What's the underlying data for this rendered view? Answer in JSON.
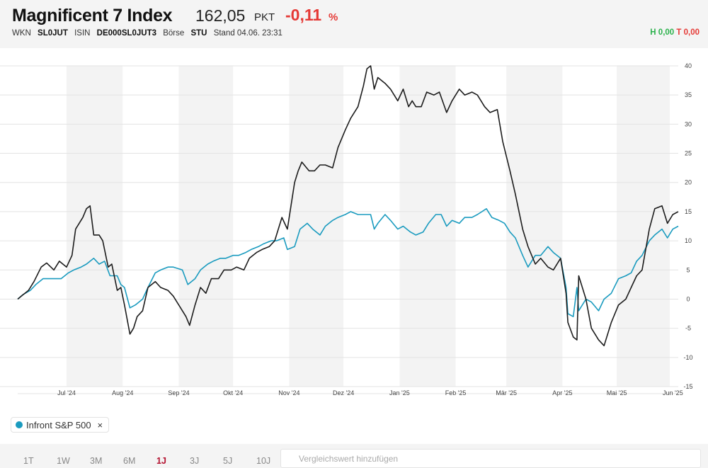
{
  "header": {
    "title": "Magnificent 7 Index",
    "price": "162,05",
    "unit": "PKT",
    "change": "-0,11",
    "change_unit": "%",
    "meta": {
      "wkn_label": "WKN",
      "wkn": "SL0JUT",
      "isin_label": "ISIN",
      "isin": "DE000SL0JUT3",
      "exchange_label": "Börse",
      "exchange": "STU",
      "stand": "Stand 04.06. 23:31"
    },
    "high": "H 0,00",
    "low": "T 0,00"
  },
  "colors": {
    "main": "#1c1c1c",
    "compare": "#1a9bbf",
    "negative": "#e53935",
    "positive": "#2bb24c"
  },
  "chart_data": {
    "type": "line",
    "x_tick_labels": [
      "Jul '24",
      "Aug '24",
      "Sep '24",
      "Okt '24",
      "Nov '24",
      "Dez '24",
      "Jan '25",
      "Feb '25",
      "Mär '25",
      "Apr '25",
      "Mai '25",
      "Jun '25"
    ],
    "y_tick_labels": [
      "40",
      "35",
      "30",
      "25",
      "20",
      "15",
      "10",
      "5",
      "0",
      "-5",
      "-10",
      "-15"
    ],
    "ylim": [
      -15,
      40
    ],
    "grid": true,
    "series": [
      {
        "name": "",
        "values": [
          [
            "2024-06-04",
            0
          ],
          [
            "2024-06-06",
            0.5
          ],
          [
            "2024-06-10",
            1.5
          ],
          [
            "2024-06-13",
            3
          ],
          [
            "2024-06-17",
            5.5
          ],
          [
            "2024-06-20",
            6.2
          ],
          [
            "2024-06-24",
            5
          ],
          [
            "2024-06-27",
            6.5
          ],
          [
            "2024-07-01",
            5.5
          ],
          [
            "2024-07-04",
            7.5
          ],
          [
            "2024-07-06",
            12
          ],
          [
            "2024-07-10",
            14
          ],
          [
            "2024-07-12",
            15.5
          ],
          [
            "2024-07-14",
            16
          ],
          [
            "2024-07-16",
            11
          ],
          [
            "2024-07-19",
            11
          ],
          [
            "2024-07-21",
            10
          ],
          [
            "2024-07-24",
            5.5
          ],
          [
            "2024-07-26",
            6
          ],
          [
            "2024-07-29",
            1.5
          ],
          [
            "2024-07-31",
            2
          ],
          [
            "2024-08-02",
            -1
          ],
          [
            "2024-08-05",
            -6
          ],
          [
            "2024-08-07",
            -5
          ],
          [
            "2024-08-09",
            -3
          ],
          [
            "2024-08-12",
            -2
          ],
          [
            "2024-08-15",
            2
          ],
          [
            "2024-08-19",
            3
          ],
          [
            "2024-08-22",
            2
          ],
          [
            "2024-08-26",
            1.5
          ],
          [
            "2024-08-29",
            0.5
          ],
          [
            "2024-09-03",
            -2
          ],
          [
            "2024-09-05",
            -3
          ],
          [
            "2024-09-07",
            -4.5
          ],
          [
            "2024-09-10",
            -1
          ],
          [
            "2024-09-13",
            2
          ],
          [
            "2024-09-16",
            1
          ],
          [
            "2024-09-19",
            3.5
          ],
          [
            "2024-09-23",
            3.5
          ],
          [
            "2024-09-26",
            5
          ],
          [
            "2024-09-30",
            5
          ],
          [
            "2024-10-03",
            5.5
          ],
          [
            "2024-10-07",
            5
          ],
          [
            "2024-10-10",
            7
          ],
          [
            "2024-10-14",
            8
          ],
          [
            "2024-10-17",
            8.5
          ],
          [
            "2024-10-21",
            9
          ],
          [
            "2024-10-24",
            10
          ],
          [
            "2024-10-28",
            14
          ],
          [
            "2024-10-31",
            12
          ],
          [
            "2024-11-04",
            20
          ],
          [
            "2024-11-06",
            22
          ],
          [
            "2024-11-08",
            23.5
          ],
          [
            "2024-11-12",
            22
          ],
          [
            "2024-11-15",
            22
          ],
          [
            "2024-11-18",
            23
          ],
          [
            "2024-11-21",
            23
          ],
          [
            "2024-11-25",
            22.5
          ],
          [
            "2024-11-28",
            26
          ],
          [
            "2024-12-02",
            29
          ],
          [
            "2024-12-05",
            31
          ],
          [
            "2024-12-09",
            33
          ],
          [
            "2024-12-12",
            36.5
          ],
          [
            "2024-12-14",
            39.5
          ],
          [
            "2024-12-16",
            40
          ],
          [
            "2024-12-18",
            36
          ],
          [
            "2024-12-20",
            38
          ],
          [
            "2024-12-24",
            37
          ],
          [
            "2024-12-27",
            36
          ],
          [
            "2024-12-31",
            34
          ],
          [
            "2025-01-03",
            36
          ],
          [
            "2025-01-06",
            33
          ],
          [
            "2025-01-08",
            34
          ],
          [
            "2025-01-10",
            33
          ],
          [
            "2025-01-13",
            33
          ],
          [
            "2025-01-16",
            35.5
          ],
          [
            "2025-01-20",
            35
          ],
          [
            "2025-01-23",
            35.5
          ],
          [
            "2025-01-27",
            32
          ],
          [
            "2025-01-30",
            34
          ],
          [
            "2025-02-03",
            36
          ],
          [
            "2025-02-06",
            35
          ],
          [
            "2025-02-10",
            35.5
          ],
          [
            "2025-02-13",
            35
          ],
          [
            "2025-02-17",
            33
          ],
          [
            "2025-02-20",
            32
          ],
          [
            "2025-02-24",
            32.5
          ],
          [
            "2025-02-27",
            27
          ],
          [
            "2025-03-03",
            22
          ],
          [
            "2025-03-06",
            18
          ],
          [
            "2025-03-10",
            12
          ],
          [
            "2025-03-13",
            9
          ],
          [
            "2025-03-17",
            6
          ],
          [
            "2025-03-20",
            7
          ],
          [
            "2025-03-24",
            5.5
          ],
          [
            "2025-03-27",
            5
          ],
          [
            "2025-03-31",
            7
          ],
          [
            "2025-04-03",
            1
          ],
          [
            "2025-04-04",
            -4
          ],
          [
            "2025-04-07",
            -6.5
          ],
          [
            "2025-04-09",
            -7
          ],
          [
            "2025-04-10",
            4
          ],
          [
            "2025-04-14",
            0
          ],
          [
            "2025-04-17",
            -5
          ],
          [
            "2025-04-21",
            -7
          ],
          [
            "2025-04-24",
            -8
          ],
          [
            "2025-04-28",
            -4
          ],
          [
            "2025-05-02",
            -1
          ],
          [
            "2025-05-06",
            0
          ],
          [
            "2025-05-09",
            2
          ],
          [
            "2025-05-12",
            4
          ],
          [
            "2025-05-15",
            5
          ],
          [
            "2025-05-19",
            12
          ],
          [
            "2025-05-22",
            15.5
          ],
          [
            "2025-05-26",
            16
          ],
          [
            "2025-05-29",
            13
          ],
          [
            "2025-06-01",
            14.5
          ],
          [
            "2025-06-04",
            15
          ]
        ]
      },
      {
        "name": "Infront S&P 500",
        "values": [
          [
            "2024-06-04",
            0
          ],
          [
            "2024-06-07",
            0.8
          ],
          [
            "2024-06-11",
            1.5
          ],
          [
            "2024-06-14",
            2.5
          ],
          [
            "2024-06-18",
            3.5
          ],
          [
            "2024-06-21",
            3.5
          ],
          [
            "2024-06-25",
            3.5
          ],
          [
            "2024-06-28",
            3.5
          ],
          [
            "2024-07-02",
            4.5
          ],
          [
            "2024-07-05",
            5
          ],
          [
            "2024-07-09",
            5.5
          ],
          [
            "2024-07-12",
            6
          ],
          [
            "2024-07-16",
            7
          ],
          [
            "2024-07-19",
            6
          ],
          [
            "2024-07-22",
            6.5
          ],
          [
            "2024-07-25",
            4
          ],
          [
            "2024-07-29",
            4
          ],
          [
            "2024-07-31",
            2.5
          ],
          [
            "2024-08-02",
            2
          ],
          [
            "2024-08-05",
            -1.5
          ],
          [
            "2024-08-08",
            -1
          ],
          [
            "2024-08-12",
            0
          ],
          [
            "2024-08-15",
            2
          ],
          [
            "2024-08-19",
            4.5
          ],
          [
            "2024-08-22",
            5
          ],
          [
            "2024-08-26",
            5.5
          ],
          [
            "2024-08-29",
            5.5
          ],
          [
            "2024-09-03",
            5
          ],
          [
            "2024-09-06",
            2.5
          ],
          [
            "2024-09-10",
            3.5
          ],
          [
            "2024-09-13",
            5
          ],
          [
            "2024-09-17",
            6
          ],
          [
            "2024-09-20",
            6.5
          ],
          [
            "2024-09-24",
            7
          ],
          [
            "2024-09-27",
            7
          ],
          [
            "2024-10-01",
            7.5
          ],
          [
            "2024-10-04",
            7.5
          ],
          [
            "2024-10-08",
            8
          ],
          [
            "2024-10-11",
            8.5
          ],
          [
            "2024-10-15",
            9
          ],
          [
            "2024-10-18",
            9.5
          ],
          [
            "2024-10-22",
            10
          ],
          [
            "2024-10-25",
            10
          ],
          [
            "2024-10-29",
            10.5
          ],
          [
            "2024-10-31",
            8.5
          ],
          [
            "2024-11-04",
            9
          ],
          [
            "2024-11-07",
            12
          ],
          [
            "2024-11-11",
            13
          ],
          [
            "2024-11-14",
            12
          ],
          [
            "2024-11-18",
            11
          ],
          [
            "2024-11-21",
            12.5
          ],
          [
            "2024-11-25",
            13.5
          ],
          [
            "2024-11-28",
            14
          ],
          [
            "2024-12-02",
            14.5
          ],
          [
            "2024-12-05",
            15
          ],
          [
            "2024-12-09",
            14.5
          ],
          [
            "2024-12-12",
            14.5
          ],
          [
            "2024-12-16",
            14.5
          ],
          [
            "2024-12-18",
            12
          ],
          [
            "2024-12-20",
            13
          ],
          [
            "2024-12-24",
            14.5
          ],
          [
            "2024-12-27",
            13.5
          ],
          [
            "2024-12-31",
            12
          ],
          [
            "2025-01-03",
            12.5
          ],
          [
            "2025-01-07",
            11.5
          ],
          [
            "2025-01-10",
            11
          ],
          [
            "2025-01-14",
            11.5
          ],
          [
            "2025-01-17",
            13
          ],
          [
            "2025-01-21",
            14.5
          ],
          [
            "2025-01-24",
            14.5
          ],
          [
            "2025-01-27",
            12.5
          ],
          [
            "2025-01-30",
            13.5
          ],
          [
            "2025-02-03",
            13
          ],
          [
            "2025-02-06",
            14
          ],
          [
            "2025-02-10",
            14
          ],
          [
            "2025-02-13",
            14.5
          ],
          [
            "2025-02-18",
            15.5
          ],
          [
            "2025-02-21",
            14
          ],
          [
            "2025-02-25",
            13.5
          ],
          [
            "2025-02-28",
            13
          ],
          [
            "2025-03-03",
            11.5
          ],
          [
            "2025-03-06",
            10.5
          ],
          [
            "2025-03-10",
            7.5
          ],
          [
            "2025-03-13",
            5.5
          ],
          [
            "2025-03-17",
            7.5
          ],
          [
            "2025-03-20",
            7.5
          ],
          [
            "2025-03-24",
            9
          ],
          [
            "2025-03-27",
            8
          ],
          [
            "2025-03-31",
            7
          ],
          [
            "2025-04-03",
            2
          ],
          [
            "2025-04-04",
            -2.5
          ],
          [
            "2025-04-07",
            -3
          ],
          [
            "2025-04-09",
            2
          ],
          [
            "2025-04-10",
            -2
          ],
          [
            "2025-04-14",
            0
          ],
          [
            "2025-04-17",
            -0.5
          ],
          [
            "2025-04-21",
            -2
          ],
          [
            "2025-04-24",
            0
          ],
          [
            "2025-04-28",
            1
          ],
          [
            "2025-05-02",
            3.5
          ],
          [
            "2025-05-06",
            4
          ],
          [
            "2025-05-09",
            4.5
          ],
          [
            "2025-05-12",
            6.5
          ],
          [
            "2025-05-15",
            7.5
          ],
          [
            "2025-05-19",
            10
          ],
          [
            "2025-05-22",
            11
          ],
          [
            "2025-05-26",
            12
          ],
          [
            "2025-05-29",
            10.5
          ],
          [
            "2025-06-01",
            12
          ],
          [
            "2025-06-04",
            12.5
          ]
        ]
      }
    ]
  },
  "legend": {
    "items": [
      {
        "label": "Infront S&P 500",
        "remove_symbol": "×"
      }
    ]
  },
  "ranges": [
    {
      "label": "1T"
    },
    {
      "label": "1W"
    },
    {
      "label": "3M"
    },
    {
      "label": "6M"
    },
    {
      "label": "1J",
      "active": true
    },
    {
      "label": "3J"
    },
    {
      "label": "5J"
    },
    {
      "label": "10J"
    }
  ],
  "compare": {
    "placeholder": "Vergleichswert hinzufügen"
  }
}
